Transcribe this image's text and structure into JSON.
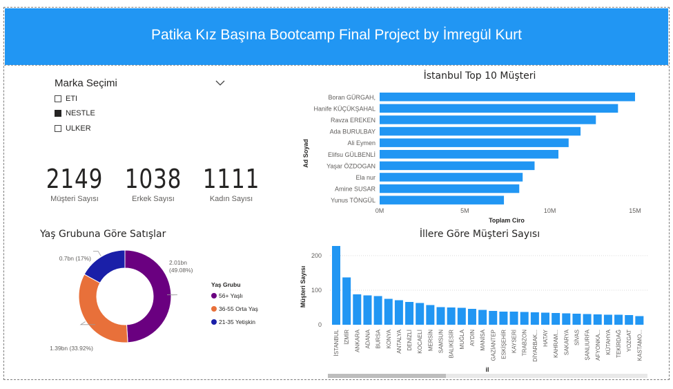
{
  "header": {
    "title": "Patika Kız Başına Bootcamp Final Project by İmregül Kurt"
  },
  "slicer": {
    "title": "Marka Seçimi",
    "items": [
      {
        "label": "ETI",
        "checked": false
      },
      {
        "label": "NESTLE",
        "checked": true
      },
      {
        "label": "ULKER",
        "checked": false
      }
    ]
  },
  "kpis": [
    {
      "value": "2149",
      "label": "Müşteri Sayısı"
    },
    {
      "value": "1038",
      "label": "Erkek Sayısı"
    },
    {
      "value": "1111",
      "label": "Kadın Sayısı"
    }
  ],
  "colors": {
    "header": "#2196F3",
    "bar": "#2196F3",
    "old": "#6A0080",
    "middle": "#E8703A",
    "young": "#1A1FA8"
  },
  "chart_data": [
    {
      "type": "bar",
      "orientation": "horizontal",
      "title": "İstanbul Top 10 Müşteri",
      "xlabel": "Toplam Ciro",
      "ylabel": "Ad Soyad",
      "categories": [
        "Boran GÜRGAH,",
        "Hanife KÜÇÜKŞAHAL",
        "Ravza EREKEN",
        "Ada BURULBAY",
        "Ali Eymen",
        "Elifsu GÜLBENLİ",
        "Yaşar ÖZDOGAN",
        "Ela nur",
        "Amine SUSAR",
        "Yunus TÖNGÜL"
      ],
      "values": [
        15.0,
        14.0,
        12.7,
        11.8,
        11.1,
        10.5,
        9.1,
        8.4,
        8.2,
        7.3
      ],
      "xlim": [
        0,
        15
      ],
      "xticks": [
        {
          "value": 0,
          "label": "0M"
        },
        {
          "value": 5,
          "label": "5M"
        },
        {
          "value": 10,
          "label": "10M"
        },
        {
          "value": 15,
          "label": "15M"
        }
      ]
    },
    {
      "type": "pie",
      "donut": true,
      "title": "Yaş Grubuna Göre Satışlar",
      "legend_title": "Yaş Grubu",
      "legend_position": "right",
      "slices": [
        {
          "name": "56+ Yaşlı",
          "value": 2.01,
          "label": "2.01bn (49.08%)",
          "color_key": "old"
        },
        {
          "name": "36-55 Orta Yaş",
          "value": 1.39,
          "label": "1.39bn (33.92%)",
          "color_key": "middle"
        },
        {
          "name": "21-35 Yetişkin",
          "value": 0.7,
          "label": "0.7bn (17%)",
          "color_key": "young"
        }
      ]
    },
    {
      "type": "bar",
      "title": "İllere Göre Müşteri Sayısı",
      "xlabel": "il",
      "ylabel": "Müşteri Sayısı",
      "ylim": [
        0,
        230
      ],
      "yticks": [
        0,
        100,
        200
      ],
      "grid": true,
      "categories": [
        "İSTANBUL",
        "İZMİR",
        "ANKARA",
        "ADANA",
        "BURSA",
        "KONYA",
        "ANTALYA",
        "DENİZLİ",
        "KOCAELİ",
        "MERSİN",
        "SAMSUN",
        "BALIKESİR",
        "MUĞLA",
        "AYDIN",
        "MANİSA",
        "GAZİANTEP",
        "ESKİŞEHİR",
        "KAYSERİ",
        "TRABZON",
        "DİYARBAK...",
        "HATAY",
        "KAHRAM...",
        "SAKARYA",
        "SİVAS",
        "ŞANLIURFA",
        "AFYONKA...",
        "KÜTAHYA",
        "TEKİRDAĞ",
        "YOZGAT",
        "KASTAMO..."
      ],
      "values": [
        228,
        137,
        88,
        85,
        83,
        75,
        71,
        66,
        63,
        57,
        51,
        50,
        49,
        46,
        43,
        40,
        38,
        38,
        37,
        36,
        35,
        34,
        33,
        32,
        31,
        30,
        29,
        29,
        28,
        25
      ]
    }
  ]
}
